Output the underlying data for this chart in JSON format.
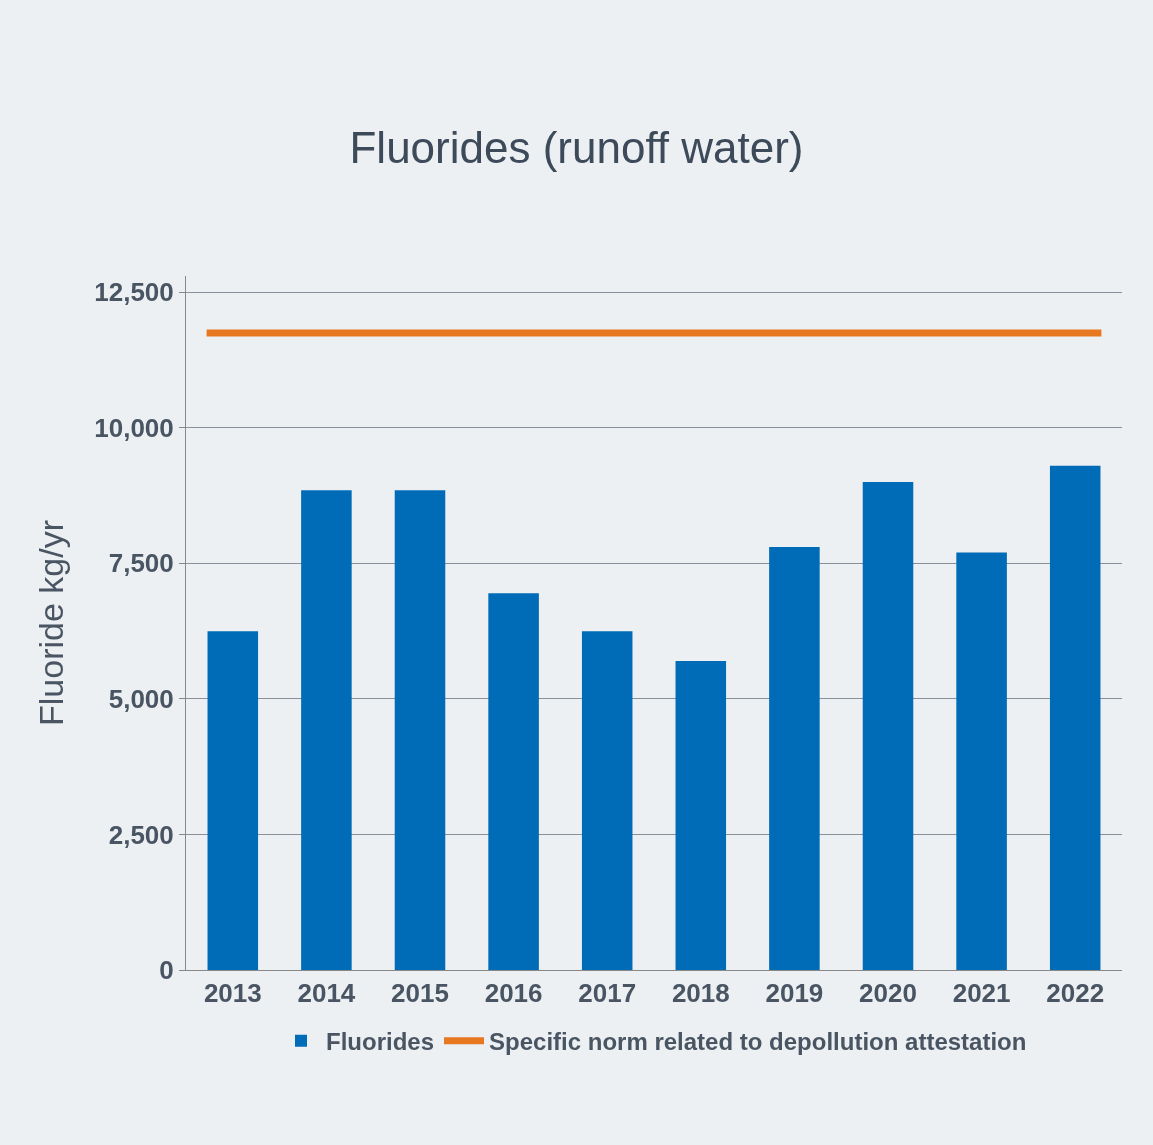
{
  "chart_data": {
    "type": "bar",
    "title": "Fluorides (runoff water)",
    "ylabel": "Fluoride kg/yr",
    "categories": [
      "2013",
      "2014",
      "2015",
      "2016",
      "2017",
      "2018",
      "2019",
      "2020",
      "2021",
      "2022"
    ],
    "series": [
      {
        "name": "Fluorides",
        "color": "#006bb6",
        "values": [
          6250,
          8850,
          8850,
          6950,
          6250,
          5700,
          7800,
          9000,
          7700,
          9300
        ]
      }
    ],
    "ref_lines": [
      {
        "axis": "y",
        "value": 11750,
        "label": "Specific norm related to depollution attestation",
        "color": "#e87722",
        "line_style": "solid"
      }
    ],
    "ylim": [
      0,
      12800
    ],
    "yticks": [
      0,
      {
        "value": 2500,
        "label": "2,500"
      },
      {
        "value": 5000,
        "label": "5,000"
      },
      {
        "value": 7500,
        "label": "7,500"
      },
      {
        "value": 10000,
        "label": "10,000"
      },
      {
        "value": 12500,
        "label": "12,500"
      }
    ],
    "grid": "y",
    "legend": "bottom"
  }
}
